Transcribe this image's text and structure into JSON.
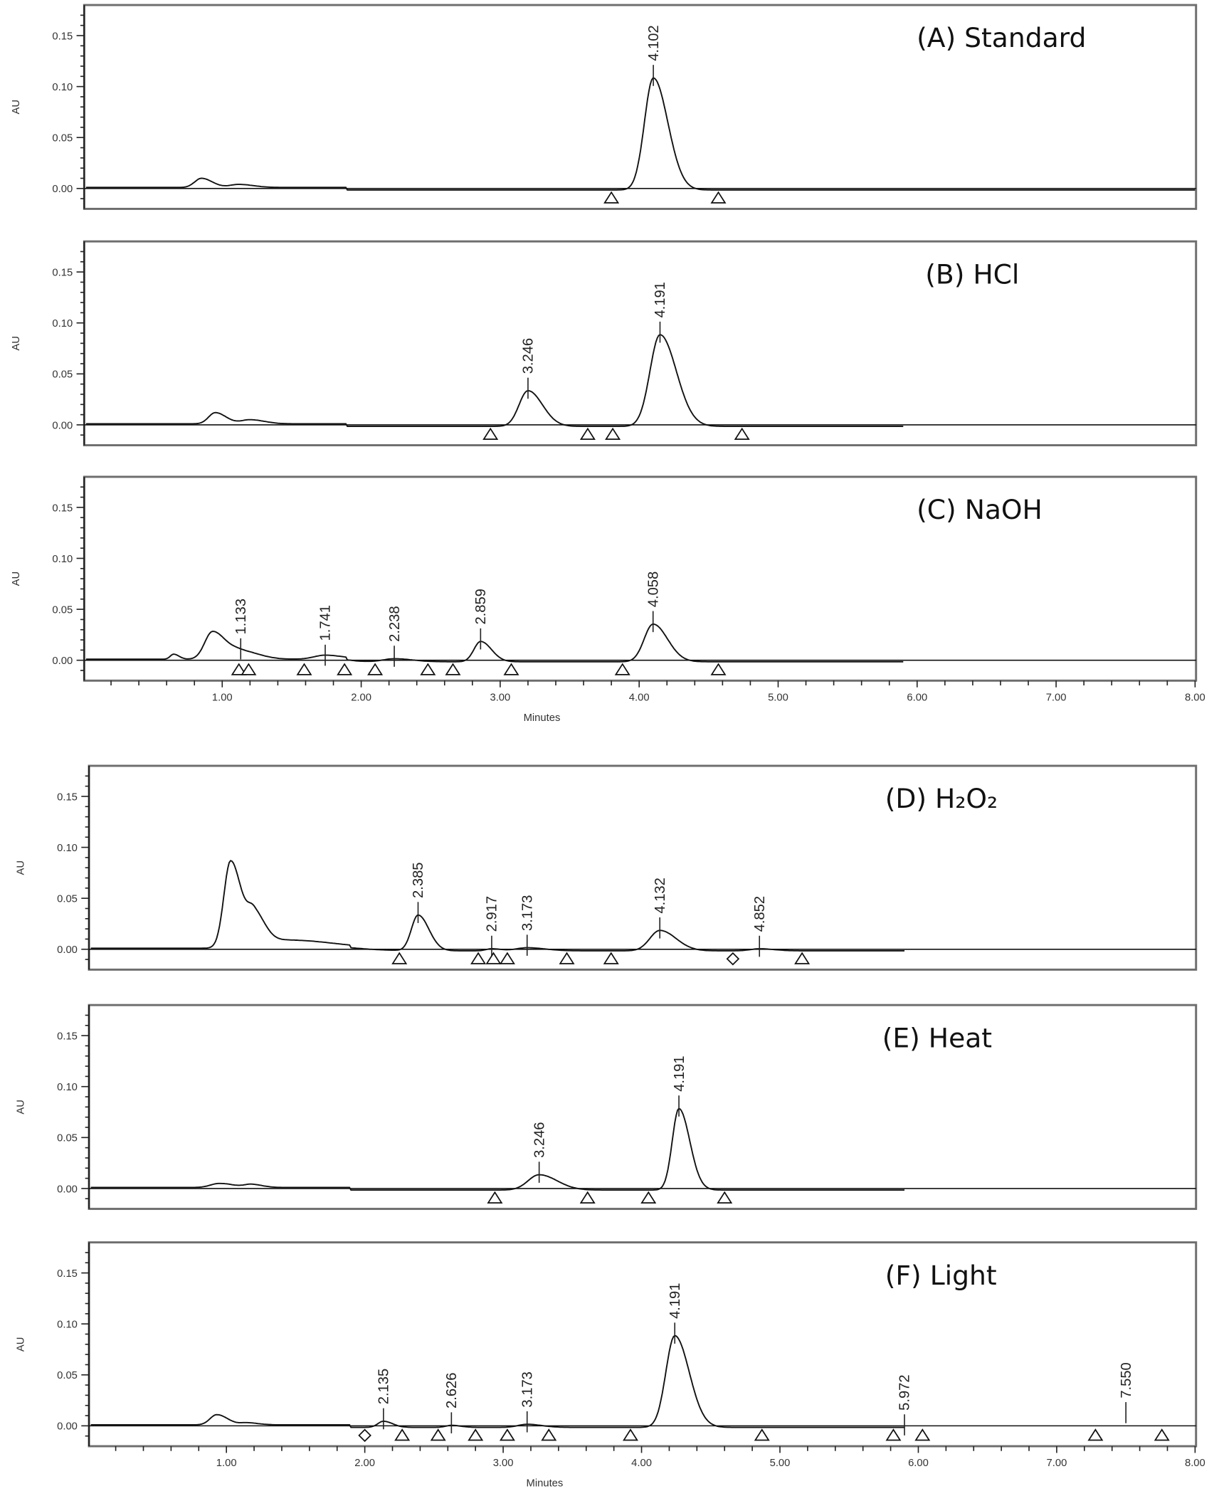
{
  "chart_data": [
    {
      "type": "line",
      "title": "(A) Standard",
      "ylabel": "AU",
      "xlabel": "",
      "xlim": [
        0,
        8
      ],
      "ylim": [
        -0.02,
        0.18
      ],
      "yticks": [
        "0.00",
        "0.05",
        "0.10",
        "0.15"
      ],
      "solvent": [
        {
          "rt": 0.85,
          "h": 0.009,
          "w": 0.06
        },
        {
          "rt": 1.12,
          "h": 0.003,
          "w": 0.08
        }
      ],
      "peaks": [
        {
          "label": "4.102",
          "rt": 4.102,
          "h": 0.11,
          "w": 0.08
        }
      ],
      "triangles": [
        3.8,
        4.57
      ],
      "diamonds": []
    },
    {
      "type": "line",
      "title": "(B) HCl",
      "ylabel": "AU",
      "xlabel": "",
      "xlim": [
        0,
        8
      ],
      "ylim": [
        -0.02,
        0.18
      ],
      "yticks": [
        "0.00",
        "0.05",
        "0.10",
        "0.15"
      ],
      "solvent": [
        {
          "rt": 0.95,
          "h": 0.011,
          "w": 0.06
        },
        {
          "rt": 1.2,
          "h": 0.004,
          "w": 0.08
        }
      ],
      "peaks": [
        {
          "label": "3.246",
          "rt": 3.2,
          "h": 0.035,
          "w": 0.08
        },
        {
          "label": "4.191",
          "rt": 4.15,
          "h": 0.09,
          "w": 0.09
        }
      ],
      "triangles": [
        2.93,
        3.63,
        3.81,
        4.74
      ],
      "diamonds": []
    },
    {
      "type": "line",
      "title": "(C) NaOH",
      "ylabel": "AU",
      "xlabel": "Minutes",
      "xlim": [
        0,
        8
      ],
      "ylim": [
        -0.02,
        0.18
      ],
      "xticks": [
        "1.00",
        "2.00",
        "3.00",
        "4.00",
        "5.00",
        "6.00",
        "7.00",
        "8.00"
      ],
      "yticks": [
        "0.00",
        "0.05",
        "0.10",
        "0.15"
      ],
      "solvent": [
        {
          "rt": 0.65,
          "h": 0.005,
          "w": 0.03
        },
        {
          "rt": 0.93,
          "h": 0.027,
          "w": 0.07
        }
      ],
      "peaks": [
        {
          "label": "1.133",
          "rt": 1.133,
          "h": 0.008,
          "w": 0.1
        },
        {
          "label": "1.741",
          "rt": 1.741,
          "h": 0.004,
          "w": 0.1
        },
        {
          "label": "2.238",
          "rt": 2.238,
          "h": 0.003,
          "w": 0.1
        },
        {
          "label": "2.859",
          "rt": 2.859,
          "h": 0.02,
          "w": 0.06
        },
        {
          "label": "4.058",
          "rt": 4.1,
          "h": 0.037,
          "w": 0.08
        }
      ],
      "triangles": [
        1.12,
        1.19,
        1.59,
        1.88,
        2.1,
        2.48,
        2.66,
        3.08,
        3.88,
        4.57
      ],
      "diamonds": []
    },
    {
      "type": "line",
      "title": "(D) H₂O₂",
      "ylabel": "AU",
      "xlabel": "",
      "xlim": [
        0,
        8
      ],
      "ylim": [
        -0.02,
        0.18
      ],
      "yticks": [
        "0.00",
        "0.05",
        "0.10",
        "0.15"
      ],
      "solvent": [
        {
          "rt": 1.03,
          "h": 0.085,
          "w": 0.06
        },
        {
          "rt": 1.2,
          "h": 0.03,
          "w": 0.06
        },
        {
          "rt": 1.45,
          "h": 0.008,
          "w": 0.25
        }
      ],
      "peaks": [
        {
          "label": "2.385",
          "rt": 2.385,
          "h": 0.035,
          "w": 0.06
        },
        {
          "label": "2.917",
          "rt": 2.917,
          "h": 0.002,
          "w": 0.05
        },
        {
          "label": "3.173",
          "rt": 3.173,
          "h": 0.003,
          "w": 0.1
        },
        {
          "label": "4.132",
          "rt": 4.132,
          "h": 0.02,
          "w": 0.09
        },
        {
          "label": "4.852",
          "rt": 4.852,
          "h": 0.002,
          "w": 0.08
        }
      ],
      "triangles": [
        2.25,
        2.82,
        2.93,
        3.03,
        3.46,
        3.78,
        5.16
      ],
      "diamonds": [
        4.66
      ]
    },
    {
      "type": "line",
      "title": "(E) Heat",
      "ylabel": "AU",
      "xlabel": "",
      "xlim": [
        0,
        8
      ],
      "ylim": [
        -0.02,
        0.18
      ],
      "yticks": [
        "0.00",
        "0.05",
        "0.10",
        "0.15"
      ],
      "solvent": [
        {
          "rt": 0.95,
          "h": 0.004,
          "w": 0.08
        },
        {
          "rt": 1.18,
          "h": 0.003,
          "w": 0.06
        }
      ],
      "peaks": [
        {
          "label": "3.246",
          "rt": 3.26,
          "h": 0.015,
          "w": 0.1
        },
        {
          "label": "4.191",
          "rt": 4.27,
          "h": 0.08,
          "w": 0.06
        }
      ],
      "triangles": [
        2.94,
        3.61,
        4.05,
        4.6
      ],
      "diamonds": []
    },
    {
      "type": "line",
      "title": "(F) Light",
      "ylabel": "AU",
      "xlabel": "Minutes",
      "xlim": [
        0,
        8
      ],
      "ylim": [
        -0.02,
        0.18
      ],
      "xticks": [
        "1.00",
        "2.00",
        "3.00",
        "4.00",
        "5.00",
        "6.00",
        "7.00",
        "8.00"
      ],
      "yticks": [
        "0.00",
        "0.05",
        "0.10",
        "0.15"
      ],
      "solvent": [
        {
          "rt": 0.93,
          "h": 0.01,
          "w": 0.06
        },
        {
          "rt": 1.15,
          "h": 0.002,
          "w": 0.06
        }
      ],
      "peaks": [
        {
          "label": "2.135",
          "rt": 2.135,
          "h": 0.006,
          "w": 0.05
        },
        {
          "label": "2.626",
          "rt": 2.626,
          "h": 0.002,
          "w": 0.05
        },
        {
          "label": "3.173",
          "rt": 3.173,
          "h": 0.003,
          "w": 0.08
        },
        {
          "label": "4.191",
          "rt": 4.24,
          "h": 0.09,
          "w": 0.08
        },
        {
          "label": "5.972",
          "rt": 5.9,
          "h": 0.0,
          "w": 0.05
        },
        {
          "label": "7.550",
          "rt": 7.5,
          "h": 0.012,
          "w": 0.08
        }
      ],
      "triangles": [
        2.27,
        2.53,
        2.8,
        3.03,
        3.33,
        3.92,
        4.87,
        5.82,
        6.03,
        7.28,
        7.76
      ],
      "diamonds": [
        2.0
      ]
    }
  ]
}
